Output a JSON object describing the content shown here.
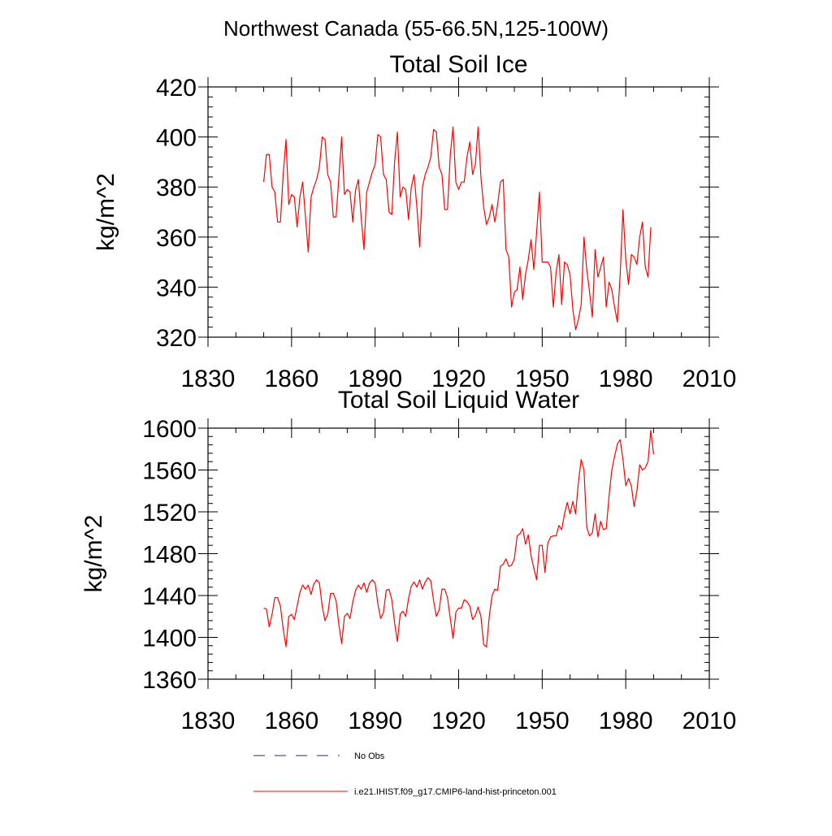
{
  "title": "Northwest Canada (55-66.5N,125-100W)",
  "colors": {
    "model": "#ff0000",
    "obs": "#2a2a7a",
    "axis": "#000000"
  },
  "legend": {
    "entries": [
      {
        "label": "No Obs",
        "style": "dashed",
        "color": "#2a2a7a"
      },
      {
        "label": "i.e21.IHIST.f09_g17.CMIP6-land-hist-princeton.001",
        "style": "solid",
        "color": "#ff0000"
      }
    ]
  },
  "chart_data": [
    {
      "type": "line",
      "title": "Total Soil Ice",
      "ylabel": "kg/m^2",
      "xlabel": "",
      "xlim": [
        1830,
        2010
      ],
      "ylim": [
        320,
        420
      ],
      "xticks": [
        1830,
        1860,
        1890,
        1920,
        1950,
        1980,
        2010
      ],
      "yticks": [
        320,
        340,
        360,
        380,
        400,
        420
      ],
      "grid": false,
      "x_start": 1850,
      "series": [
        {
          "name": "i.e21.IHIST.f09_g17.CMIP6-land-hist-princeton.001",
          "color": "#ff0000",
          "values": [
            382,
            393,
            393,
            380,
            378,
            366,
            366,
            385,
            399,
            373,
            377,
            376,
            364,
            376,
            382,
            368,
            354,
            376,
            380,
            383,
            388,
            400,
            399,
            385,
            382,
            368,
            368,
            384,
            400,
            377,
            379,
            378,
            366,
            379,
            383,
            368,
            355,
            378,
            382,
            386,
            389,
            401,
            400,
            385,
            383,
            370,
            369,
            390,
            402,
            376,
            380,
            379,
            367,
            380,
            385,
            372,
            356,
            380,
            385,
            388,
            392,
            403,
            402,
            388,
            385,
            371,
            371,
            393,
            404,
            382,
            379,
            382,
            382,
            392,
            398,
            385,
            389,
            404,
            384,
            372,
            365,
            368,
            373,
            366,
            373,
            382,
            383,
            355,
            352,
            332,
            338,
            339,
            348,
            335,
            345,
            351,
            359,
            347,
            362,
            378,
            350,
            350,
            350,
            348,
            332,
            346,
            353,
            333,
            350,
            349,
            345,
            331,
            323,
            327,
            333,
            360,
            347,
            338,
            328,
            355,
            344,
            348,
            352,
            332,
            342,
            339,
            332,
            326,
            345,
            371,
            351,
            341,
            353,
            352,
            349,
            360,
            366,
            348,
            344,
            364
          ]
        }
      ]
    },
    {
      "type": "line",
      "title": "Total Soil Liquid Water",
      "ylabel": "kg/m^2",
      "xlabel": "",
      "xlim": [
        1830,
        2010
      ],
      "ylim": [
        1360,
        1600
      ],
      "xticks": [
        1830,
        1860,
        1890,
        1920,
        1950,
        1980,
        2010
      ],
      "yticks": [
        1360,
        1400,
        1440,
        1480,
        1520,
        1560,
        1600
      ],
      "grid": false,
      "x_start": 1850,
      "series": [
        {
          "name": "i.e21.IHIST.f09_g17.CMIP6-land-hist-princeton.001",
          "color": "#ff0000",
          "values": [
            1428,
            1427,
            1410,
            1422,
            1438,
            1438,
            1430,
            1408,
            1391,
            1420,
            1422,
            1417,
            1430,
            1443,
            1450,
            1446,
            1450,
            1441,
            1451,
            1455,
            1452,
            1430,
            1416,
            1422,
            1442,
            1442,
            1435,
            1412,
            1394,
            1420,
            1423,
            1418,
            1434,
            1445,
            1450,
            1446,
            1452,
            1443,
            1452,
            1455,
            1452,
            1432,
            1418,
            1424,
            1445,
            1446,
            1436,
            1414,
            1396,
            1422,
            1425,
            1420,
            1437,
            1449,
            1453,
            1448,
            1455,
            1446,
            1453,
            1457,
            1454,
            1435,
            1420,
            1426,
            1446,
            1446,
            1438,
            1418,
            1399,
            1424,
            1428,
            1428,
            1436,
            1434,
            1430,
            1417,
            1421,
            1429,
            1420,
            1393,
            1391,
            1420,
            1440,
            1446,
            1445,
            1468,
            1470,
            1475,
            1468,
            1469,
            1475,
            1497,
            1499,
            1504,
            1489,
            1498,
            1478,
            1466,
            1455,
            1488,
            1488,
            1462,
            1490,
            1496,
            1497,
            1497,
            1507,
            1503,
            1518,
            1529,
            1518,
            1530,
            1518,
            1548,
            1570,
            1560,
            1505,
            1497,
            1500,
            1518,
            1496,
            1511,
            1503,
            1504,
            1535,
            1560,
            1573,
            1585,
            1589,
            1570,
            1545,
            1552,
            1545,
            1525,
            1540,
            1565,
            1560,
            1562,
            1568,
            1598,
            1575
          ]
        }
      ]
    }
  ]
}
